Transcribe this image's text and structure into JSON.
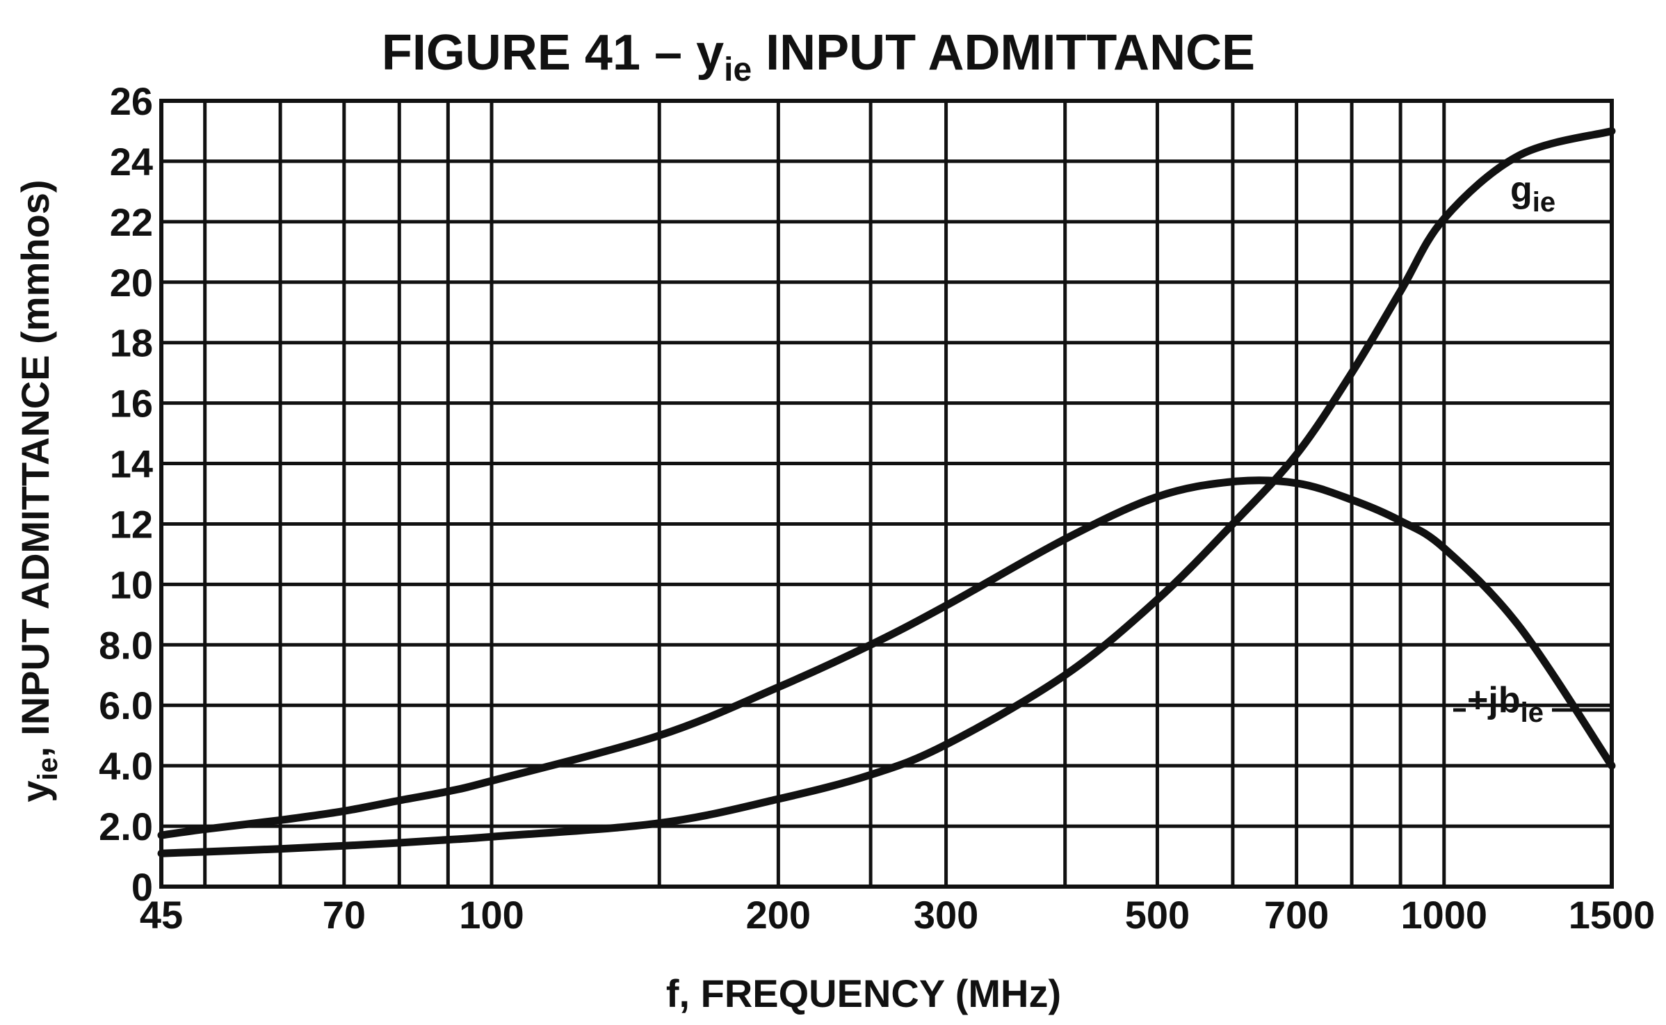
{
  "chart_data": {
    "type": "line",
    "title_main": "FIGURE 41 – y",
    "title_sub": "ie",
    "title_rest": " INPUT ADMITTANCE",
    "x_scale": "log",
    "xlim": [
      45,
      1500
    ],
    "ylim": [
      0,
      26
    ],
    "x_grid": [
      45,
      50,
      60,
      70,
      80,
      90,
      100,
      150,
      200,
      250,
      300,
      400,
      500,
      600,
      700,
      800,
      900,
      1000,
      1500
    ],
    "y_grid": [
      0,
      2,
      4,
      6,
      8,
      10,
      12,
      14,
      16,
      18,
      20,
      22,
      24,
      26
    ],
    "x_ticks": [
      {
        "value": 45,
        "label": "45"
      },
      {
        "value": 70,
        "label": "70"
      },
      {
        "value": 100,
        "label": "100"
      },
      {
        "value": 200,
        "label": "200"
      },
      {
        "value": 300,
        "label": "300"
      },
      {
        "value": 500,
        "label": "500"
      },
      {
        "value": 700,
        "label": "700"
      },
      {
        "value": 1000,
        "label": "1000"
      },
      {
        "value": 1500,
        "label": "1500"
      }
    ],
    "y_ticks": [
      {
        "value": 0,
        "label": "0"
      },
      {
        "value": 2,
        "label": "2.0"
      },
      {
        "value": 4,
        "label": "4.0"
      },
      {
        "value": 6,
        "label": "6.0"
      },
      {
        "value": 8,
        "label": "8.0"
      },
      {
        "value": 10,
        "label": "10"
      },
      {
        "value": 12,
        "label": "12"
      },
      {
        "value": 14,
        "label": "14"
      },
      {
        "value": 16,
        "label": "16"
      },
      {
        "value": 18,
        "label": "18"
      },
      {
        "value": 20,
        "label": "20"
      },
      {
        "value": 22,
        "label": "22"
      },
      {
        "value": 24,
        "label": "24"
      },
      {
        "value": 26,
        "label": "26"
      }
    ],
    "xlabel": "f, FREQUENCY (MHz)",
    "ylabel_main": "y",
    "ylabel_sub": "ie",
    "ylabel_rest": ", INPUT ADMITTANCE (mmhos)",
    "series": [
      {
        "name_main": "g",
        "name_sub": "ie",
        "x": [
          45,
          50,
          60,
          70,
          80,
          90,
          100,
          150,
          200,
          250,
          300,
          400,
          500,
          600,
          700,
          800,
          900,
          1000,
          1200,
          1500
        ],
        "y": [
          1.1,
          1.15,
          1.25,
          1.35,
          1.45,
          1.55,
          1.65,
          2.1,
          2.9,
          3.7,
          4.7,
          7.0,
          9.5,
          12.0,
          14.3,
          17.0,
          19.7,
          22.1,
          24.2,
          25.0
        ]
      },
      {
        "name_main": "+jb",
        "name_sub": "ie",
        "x": [
          45,
          50,
          60,
          70,
          80,
          90,
          100,
          150,
          200,
          250,
          300,
          400,
          500,
          600,
          700,
          800,
          900,
          1000,
          1200,
          1500
        ],
        "y": [
          1.7,
          1.9,
          2.2,
          2.5,
          2.85,
          3.15,
          3.5,
          5.0,
          6.6,
          8.0,
          9.3,
          11.5,
          12.9,
          13.4,
          13.35,
          12.8,
          12.1,
          11.2,
          8.6,
          4.0
        ]
      }
    ]
  }
}
